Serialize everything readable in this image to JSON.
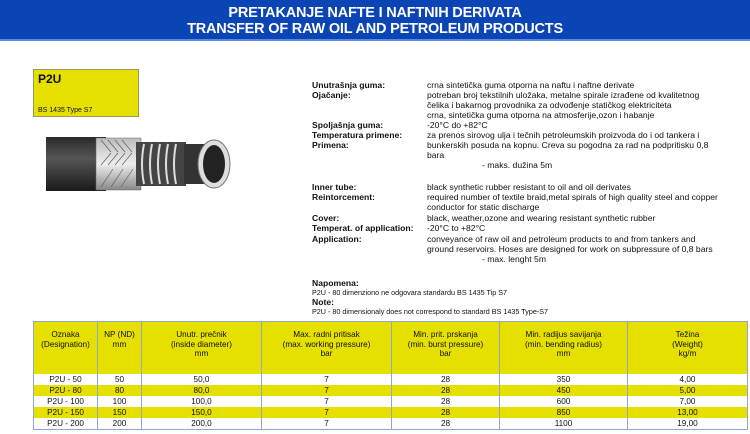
{
  "header": {
    "title_sr": "PRETAKANJE NAFTE I NAFTNIH DERIVATA",
    "title_en": "TRANSFER OF RAW OIL AND PETROLEUM PRODUCTS",
    "color": "#0b45b5"
  },
  "product": {
    "code": "P2U",
    "standard": "BS 1435 Type S7",
    "accent": "#e6e000"
  },
  "specs_sr": {
    "labels": [
      "Unutrašnja guma:",
      "Ojačanje:",
      "Spoljašnja guma:",
      "Temperatura primene:",
      "Primena:"
    ],
    "values": [
      "crna sintetička guma otporna na naftu i naftne derivate",
      "potreban broj tekstilnih uložaka, metalne spirale izrađene od kvalitetnog",
      "čelika i bakarnog provodnika za odvođenje statičkog elektriciteta",
      "crna, sintetička guma otporna na atmosferije,ozon i habanje",
      "-20°C do +82°C",
      "za prenos sirovog ulja i tečnih  petroleumskih proizvoda do i od tankera i",
      "bunkerskih posuda na kopnu. Creva su pogodna za rad na podpritisku 0,8",
      "bara",
      "- maks. dužina 5m"
    ]
  },
  "specs_en": {
    "labels": [
      "Inner tube:",
      "Reintorcement:",
      "Cover:",
      "Temperat. of application:",
      "Application:"
    ],
    "values": [
      "black synthetic rubber resistant to oil and oil derivates",
      "required number of textile braid,metal spirals of high quality steel and copper",
      "conductor for static discharge",
      "black, weather,ozone and wearing resistant synthetic rubber",
      "-20°C to +82°C",
      "conveyance of raw oil and petroleum products to and from tankers and",
      "ground reservoirs. Hoses are designed for work on subpressure of 0,8 bars",
      "- max. lenght 5m"
    ]
  },
  "notes": {
    "napomena_label": "Napomena:",
    "napomena_text": "P2U - 80 dimenziono ne odgovara standardu BS 1435 Tip S7",
    "note_label": "Note:",
    "note_text": "P2U - 80 dimensionaly does not correspond to standard BS 1435 Type-S7"
  },
  "table": {
    "headers": [
      [
        "Oznaka",
        "(Designation)",
        ""
      ],
      [
        "NP (ND)",
        "mm",
        ""
      ],
      [
        "Unutr. prečnik",
        "(inside diameter)",
        "mm"
      ],
      [
        "Max. radni pritisak",
        "(max. working pressure)",
        "bar"
      ],
      [
        "Min. prit. prskanja",
        "(min. burst pressure)",
        "bar"
      ],
      [
        "Min. radijus savijanja",
        "(min. bending radius)",
        "mm"
      ],
      [
        "Težina",
        "(Weight)",
        "kg/m"
      ]
    ],
    "rows": [
      [
        "P2U - 50",
        "50",
        "50,0",
        "7",
        "28",
        "350",
        "4,00"
      ],
      [
        "P2U - 80",
        "80",
        "80,0",
        "7",
        "28",
        "450",
        "5,00"
      ],
      [
        "P2U - 100",
        "100",
        "100,0",
        "7",
        "28",
        "600",
        "7,00"
      ],
      [
        "P2U - 150",
        "150",
        "150,0",
        "7",
        "28",
        "850",
        "13,00"
      ],
      [
        "P2U - 200",
        "200",
        "200,0",
        "7",
        "28",
        "1100",
        "19,00"
      ]
    ]
  }
}
